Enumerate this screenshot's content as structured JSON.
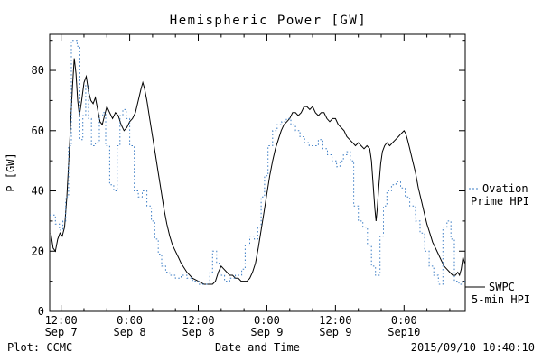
{
  "footer": {
    "plot_source": "Plot: CCMC",
    "timestamp": "2015/09/10 10:40:10"
  },
  "legend": {
    "ovation": {
      "line1": "Ovation",
      "line2": "Prime HPI",
      "color": "#3b7cc4"
    },
    "swpc": {
      "line1": "SWPC",
      "line2": "5-min HPI",
      "color": "#000000"
    }
  },
  "chart_data": {
    "type": "line",
    "title": "Hemispheric Power [GW]",
    "xlabel": "Date and Time",
    "ylabel": "P [GW]",
    "x_unit": "hours since 2015-09-07 00:00",
    "xlim": [
      10,
      82.7
    ],
    "ylim": [
      0,
      92
    ],
    "grid": false,
    "y_ticks": [
      0,
      20,
      40,
      60,
      80
    ],
    "y_minor_step": 10,
    "x_minor_step": 4,
    "x_major_ticks": [
      {
        "t": 12,
        "time": "12:00",
        "date": "Sep 7"
      },
      {
        "t": 24,
        "time": "0:00",
        "date": "Sep 8"
      },
      {
        "t": 36,
        "time": "12:00",
        "date": "Sep 8"
      },
      {
        "t": 48,
        "time": "0:00",
        "date": "Sep 9"
      },
      {
        "t": 60,
        "time": "12:00",
        "date": "Sep 9"
      },
      {
        "t": 72,
        "time": "0:00",
        "date": "Sep10"
      }
    ],
    "series": [
      {
        "name": "SWPC 5-min HPI",
        "style": "solid",
        "color": "#000000",
        "points": [
          [
            10.2,
            26
          ],
          [
            10.6,
            21
          ],
          [
            11,
            20
          ],
          [
            11.4,
            24
          ],
          [
            11.8,
            26
          ],
          [
            12.2,
            25
          ],
          [
            12.6,
            28
          ],
          [
            13,
            38
          ],
          [
            13.4,
            52
          ],
          [
            13.7,
            64
          ],
          [
            14,
            75
          ],
          [
            14.3,
            84
          ],
          [
            14.6,
            79
          ],
          [
            14.9,
            70
          ],
          [
            15.2,
            65
          ],
          [
            15.6,
            70
          ],
          [
            16,
            76
          ],
          [
            16.4,
            78
          ],
          [
            16.8,
            73
          ],
          [
            17.2,
            70
          ],
          [
            17.6,
            69
          ],
          [
            18,
            71
          ],
          [
            18.4,
            67
          ],
          [
            18.8,
            63
          ],
          [
            19.2,
            62
          ],
          [
            19.6,
            65
          ],
          [
            20,
            68
          ],
          [
            20.5,
            66
          ],
          [
            21,
            64
          ],
          [
            21.5,
            66
          ],
          [
            22,
            65
          ],
          [
            22.5,
            62
          ],
          [
            23,
            60
          ],
          [
            23.5,
            61
          ],
          [
            24,
            63
          ],
          [
            24.5,
            64
          ],
          [
            25,
            66
          ],
          [
            25.5,
            70
          ],
          [
            26,
            74
          ],
          [
            26.3,
            76
          ],
          [
            26.6,
            74
          ],
          [
            27,
            70
          ],
          [
            27.5,
            64
          ],
          [
            28,
            58
          ],
          [
            28.5,
            52
          ],
          [
            29,
            46
          ],
          [
            29.5,
            40
          ],
          [
            30,
            34
          ],
          [
            30.5,
            29
          ],
          [
            31,
            25
          ],
          [
            31.5,
            22
          ],
          [
            32,
            20
          ],
          [
            32.5,
            18
          ],
          [
            33,
            16
          ],
          [
            34,
            13
          ],
          [
            35,
            11
          ],
          [
            36,
            10
          ],
          [
            37,
            9
          ],
          [
            38,
            9
          ],
          [
            38.5,
            9
          ],
          [
            39,
            10
          ],
          [
            39.5,
            13
          ],
          [
            40,
            15
          ],
          [
            40.5,
            14
          ],
          [
            41,
            13
          ],
          [
            41.5,
            12
          ],
          [
            42,
            12
          ],
          [
            42.5,
            11
          ],
          [
            43,
            11
          ],
          [
            43.5,
            10
          ],
          [
            44,
            10
          ],
          [
            44.5,
            10
          ],
          [
            45,
            11
          ],
          [
            45.5,
            13
          ],
          [
            46,
            16
          ],
          [
            46.5,
            21
          ],
          [
            47,
            27
          ],
          [
            47.5,
            33
          ],
          [
            48,
            39
          ],
          [
            48.5,
            45
          ],
          [
            49,
            50
          ],
          [
            49.5,
            54
          ],
          [
            50,
            57
          ],
          [
            50.5,
            60
          ],
          [
            51,
            62
          ],
          [
            51.5,
            63
          ],
          [
            52,
            64
          ],
          [
            52.5,
            66
          ],
          [
            53,
            66
          ],
          [
            53.5,
            65
          ],
          [
            54,
            66
          ],
          [
            54.5,
            68
          ],
          [
            55,
            68
          ],
          [
            55.5,
            67
          ],
          [
            56,
            68
          ],
          [
            56.5,
            66
          ],
          [
            57,
            65
          ],
          [
            57.5,
            66
          ],
          [
            58,
            66
          ],
          [
            58.5,
            64
          ],
          [
            59,
            63
          ],
          [
            59.5,
            64
          ],
          [
            60,
            64
          ],
          [
            60.5,
            62
          ],
          [
            61,
            61
          ],
          [
            61.5,
            60
          ],
          [
            62,
            58
          ],
          [
            62.5,
            57
          ],
          [
            63,
            56
          ],
          [
            63.5,
            55
          ],
          [
            64,
            56
          ],
          [
            64.5,
            55
          ],
          [
            65,
            54
          ],
          [
            65.5,
            55
          ],
          [
            66,
            54
          ],
          [
            66.3,
            50
          ],
          [
            66.6,
            42
          ],
          [
            66.9,
            34
          ],
          [
            67.1,
            30
          ],
          [
            67.3,
            34
          ],
          [
            67.6,
            42
          ],
          [
            67.9,
            49
          ],
          [
            68.2,
            53
          ],
          [
            68.6,
            55
          ],
          [
            69,
            56
          ],
          [
            69.5,
            55
          ],
          [
            70,
            56
          ],
          [
            70.5,
            57
          ],
          [
            71,
            58
          ],
          [
            71.5,
            59
          ],
          [
            72,
            60
          ],
          [
            72.3,
            59
          ],
          [
            72.6,
            57
          ],
          [
            73,
            54
          ],
          [
            73.5,
            50
          ],
          [
            74,
            46
          ],
          [
            74.5,
            41
          ],
          [
            75,
            37
          ],
          [
            75.5,
            33
          ],
          [
            76,
            29
          ],
          [
            76.5,
            26
          ],
          [
            77,
            23
          ],
          [
            77.5,
            21
          ],
          [
            78,
            19
          ],
          [
            78.5,
            17
          ],
          [
            79,
            15
          ],
          [
            79.5,
            14
          ],
          [
            80,
            13
          ],
          [
            80.5,
            12
          ],
          [
            81,
            12
          ],
          [
            81.4,
            13
          ],
          [
            81.7,
            12
          ],
          [
            82,
            14
          ],
          [
            82.3,
            18
          ],
          [
            82.6,
            16
          ]
        ]
      },
      {
        "name": "Ovation Prime HPI",
        "style": "step-dotted",
        "color": "#3b7cc4",
        "points": [
          [
            10,
            32
          ],
          [
            11,
            29
          ],
          [
            11.7,
            27
          ],
          [
            12.3,
            30
          ],
          [
            12.8,
            38
          ],
          [
            13.3,
            55
          ],
          [
            13.8,
            90
          ],
          [
            14.8,
            88
          ],
          [
            15.3,
            57
          ],
          [
            15.8,
            65
          ],
          [
            16.3,
            75
          ],
          [
            16.8,
            64
          ],
          [
            17.3,
            55
          ],
          [
            18,
            56
          ],
          [
            18.7,
            65
          ],
          [
            19.3,
            66
          ],
          [
            19.8,
            55
          ],
          [
            20.5,
            42
          ],
          [
            21.2,
            40
          ],
          [
            21.8,
            55
          ],
          [
            22.3,
            65
          ],
          [
            22.8,
            67
          ],
          [
            23.4,
            64
          ],
          [
            24,
            55
          ],
          [
            24.8,
            40
          ],
          [
            25.5,
            38
          ],
          [
            26.2,
            40
          ],
          [
            27,
            35
          ],
          [
            27.8,
            30
          ],
          [
            28.4,
            24
          ],
          [
            29,
            19
          ],
          [
            29.6,
            15
          ],
          [
            30.3,
            13
          ],
          [
            31,
            12
          ],
          [
            32,
            11
          ],
          [
            33,
            12
          ],
          [
            34,
            11
          ],
          [
            35,
            10
          ],
          [
            36,
            9
          ],
          [
            37.2,
            9
          ],
          [
            38,
            13
          ],
          [
            38.5,
            20
          ],
          [
            39.2,
            16
          ],
          [
            39.8,
            12
          ],
          [
            40.6,
            10
          ],
          [
            41.5,
            11
          ],
          [
            42.5,
            12
          ],
          [
            43.6,
            14
          ],
          [
            44.2,
            22
          ],
          [
            45,
            25
          ],
          [
            45.8,
            24
          ],
          [
            46.4,
            28
          ],
          [
            47,
            38
          ],
          [
            47.6,
            45
          ],
          [
            48.2,
            55
          ],
          [
            49,
            60
          ],
          [
            49.8,
            62
          ],
          [
            50.6,
            63
          ],
          [
            51.4,
            64
          ],
          [
            52.2,
            62
          ],
          [
            53,
            60
          ],
          [
            53.8,
            58
          ],
          [
            54.6,
            56
          ],
          [
            55.4,
            55
          ],
          [
            56.2,
            55
          ],
          [
            57,
            57
          ],
          [
            57.8,
            54
          ],
          [
            58.6,
            52
          ],
          [
            59.4,
            50
          ],
          [
            60.2,
            48
          ],
          [
            60.8,
            50
          ],
          [
            61.4,
            52
          ],
          [
            62,
            53
          ],
          [
            62.6,
            50
          ],
          [
            63.2,
            35
          ],
          [
            64,
            30
          ],
          [
            64.8,
            28
          ],
          [
            65.6,
            22
          ],
          [
            66.3,
            15
          ],
          [
            67,
            12
          ],
          [
            67.8,
            25
          ],
          [
            68.4,
            35
          ],
          [
            69,
            40
          ],
          [
            69.8,
            42
          ],
          [
            70.6,
            43
          ],
          [
            71.4,
            41
          ],
          [
            72.2,
            38
          ],
          [
            73,
            35
          ],
          [
            74,
            30
          ],
          [
            74.8,
            26
          ],
          [
            75.6,
            20
          ],
          [
            76.4,
            15
          ],
          [
            77.2,
            12
          ],
          [
            78,
            9
          ],
          [
            78.8,
            28
          ],
          [
            79.5,
            30
          ],
          [
            80.2,
            24
          ],
          [
            80.8,
            10
          ],
          [
            81.6,
            9
          ],
          [
            82.2,
            10
          ]
        ]
      }
    ]
  }
}
